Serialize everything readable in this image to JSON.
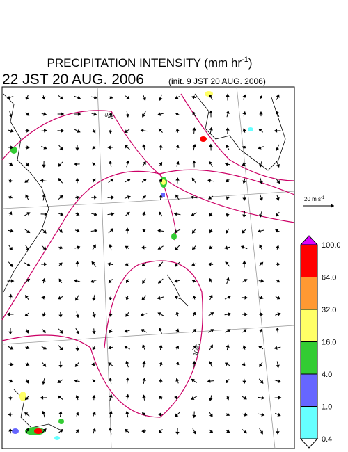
{
  "header": {
    "title": {
      "text": "PRECIPITATION INTENSITY (mm hr",
      "exponent": "-1",
      "suffix": ")"
    },
    "valid_time": "22 JST 20 AUG. 2006",
    "init_time": "(init. 9 JST 20 AUG. 2006)"
  },
  "wind_legend": {
    "text": "20 m s",
    "exponent": "-1"
  },
  "contour_labels": [
    "996",
    "1000"
  ],
  "colorbar": {
    "labels": [
      "100.0",
      "64.0",
      "32.0",
      "16.0",
      "4.0",
      "1.0",
      "0.4"
    ],
    "colors": [
      "#dd00ff",
      "#ff0000",
      "#ff9933",
      "#ffff66",
      "#33cc33",
      "#6666ff",
      "#66ffff",
      "#ffffff"
    ]
  }
}
